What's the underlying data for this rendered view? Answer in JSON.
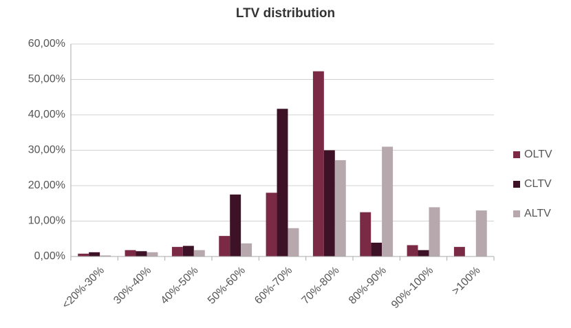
{
  "chart_data": {
    "type": "bar",
    "title": "LTV distribution",
    "categories": [
      "<20%-30%",
      "30%-40%",
      "40%-50%",
      "50%-60%",
      "60%-70%",
      "70%-80%",
      "80%-90%",
      "90%-100%",
      ">100%"
    ],
    "series": [
      {
        "name": "OLTV",
        "color": "#7b2a46",
        "values": [
          0.8,
          1.8,
          2.7,
          5.8,
          18.0,
          52.3,
          12.5,
          3.2,
          2.7
        ]
      },
      {
        "name": "CLTV",
        "color": "#3e1226",
        "values": [
          1.2,
          1.5,
          3.0,
          17.5,
          41.7,
          30.0,
          3.9,
          1.8,
          null
        ]
      },
      {
        "name": "ALTV",
        "color": "#b7a8ad",
        "values": [
          0.3,
          1.2,
          1.8,
          3.7,
          8.0,
          27.2,
          31.0,
          13.9,
          13.0
        ]
      }
    ],
    "ylim": [
      0,
      60
    ],
    "yticks": [
      {
        "value": 0,
        "label": "0,00%"
      },
      {
        "value": 10,
        "label": "10,00%"
      },
      {
        "value": 20,
        "label": "20,00%"
      },
      {
        "value": 30,
        "label": "30,00%"
      },
      {
        "value": 40,
        "label": "40,00%"
      },
      {
        "value": 50,
        "label": "50,00%"
      },
      {
        "value": 60,
        "label": "60,00%"
      }
    ],
    "grid": true,
    "legend": "right"
  }
}
